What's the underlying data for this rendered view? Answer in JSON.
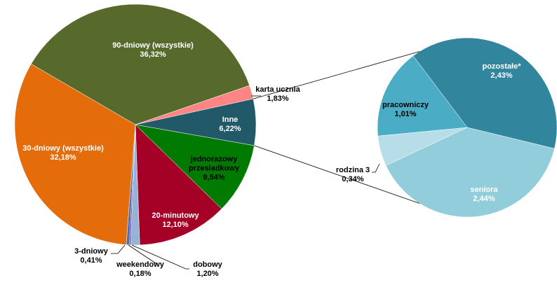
{
  "chart_data": [
    {
      "type": "pie",
      "categories": [
        "90-dniowy (wszystkie)",
        "karta ucznia",
        "Inne",
        "jednorazowy przesiadkowy",
        "20-minutowy",
        "dobowy",
        "weekendowy",
        "3-dniowy",
        "30-dniowy (wszystkie)"
      ],
      "values": [
        36.32,
        1.83,
        6.22,
        9.54,
        12.1,
        1.2,
        0.18,
        0.41,
        32.18
      ],
      "value_labels": [
        "36,32%",
        "1,83%",
        "6,22%",
        "9,54%",
        "12,10%",
        "1,20%",
        "0,18%",
        "0,41%",
        "32,18%"
      ],
      "colors": [
        "#576a2c",
        "#ff8585",
        "#215968",
        "#007a00",
        "#a50026",
        "#95b3d7",
        "#7030a0",
        "#4f6fb0",
        "#e46c0a"
      ]
    },
    {
      "type": "pie",
      "categories": [
        "pozostałe*",
        "seniora",
        "rodzina 3",
        "pracowniczy"
      ],
      "values": [
        2.43,
        2.44,
        0.34,
        1.01
      ],
      "value_labels": [
        "2,43%",
        "2,44%",
        "0,34%",
        "1,01%"
      ],
      "colors": [
        "#31859c",
        "#92cddc",
        "#b7dee8",
        "#4bacc6"
      ]
    }
  ]
}
